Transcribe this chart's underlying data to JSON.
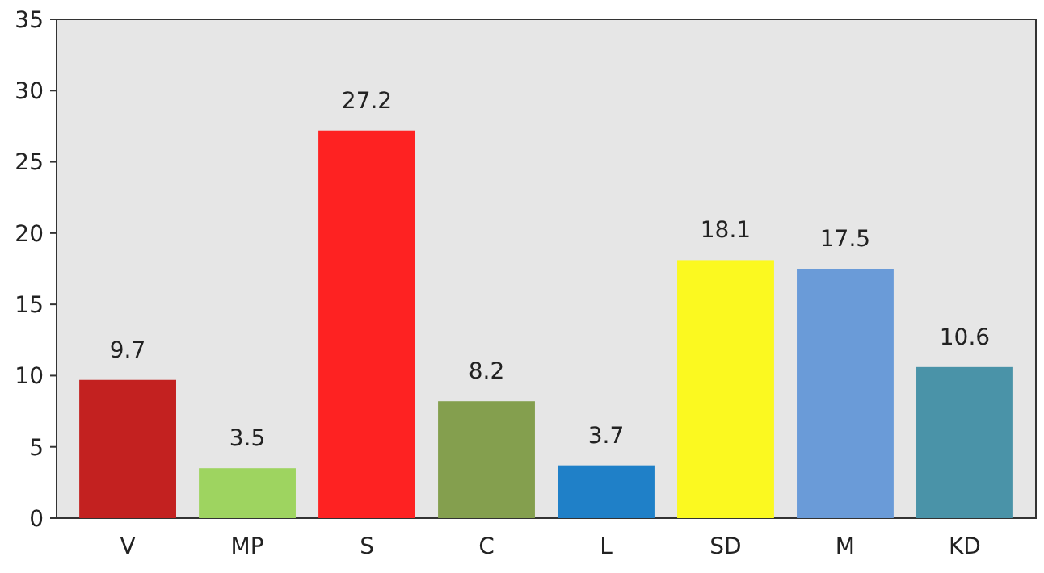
{
  "chart_data": {
    "type": "bar",
    "categories": [
      "V",
      "MP",
      "S",
      "C",
      "L",
      "SD",
      "M",
      "KD"
    ],
    "values": [
      9.7,
      3.5,
      27.2,
      8.2,
      3.7,
      18.1,
      17.5,
      10.6
    ],
    "colors": [
      "#c32120",
      "#9ed460",
      "#fe2222",
      "#849f4e",
      "#1f80c8",
      "#fbf920",
      "#6a9bd8",
      "#4a93a8"
    ],
    "ylim": [
      0,
      35
    ],
    "yticks": [
      0,
      5,
      10,
      15,
      20,
      25,
      30,
      35
    ],
    "data_labels": true,
    "grid": false
  }
}
